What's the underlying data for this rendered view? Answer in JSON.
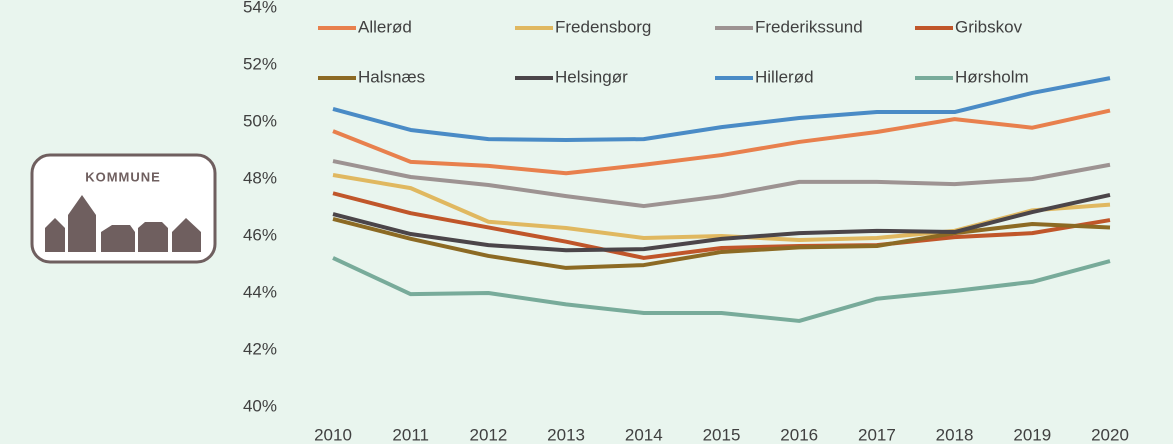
{
  "logo_text": "KOMMUNE",
  "chart_data": {
    "type": "line",
    "categories": [
      "2010",
      "2011",
      "2012",
      "2013",
      "2014",
      "2015",
      "2016",
      "2017",
      "2018",
      "2019",
      "2020"
    ],
    "series": [
      {
        "name": "Allerød",
        "color": "#e8804d",
        "values": [
          49.68,
          48.6,
          48.46,
          48.2,
          48.5,
          48.84,
          49.3,
          49.65,
          50.1,
          49.8,
          50.4
        ]
      },
      {
        "name": "Fredensborg",
        "color": "#e0b860",
        "values": [
          48.14,
          47.68,
          46.5,
          46.28,
          45.93,
          46.0,
          45.86,
          45.93,
          46.18,
          46.9,
          47.1
        ]
      },
      {
        "name": "Frederikssund",
        "color": "#9d9392",
        "values": [
          48.63,
          48.07,
          47.79,
          47.4,
          47.05,
          47.4,
          47.9,
          47.9,
          47.82,
          48.0,
          48.5
        ]
      },
      {
        "name": "Gribskov",
        "color": "#c0562a",
        "values": [
          47.5,
          46.8,
          46.3,
          45.8,
          45.23,
          45.58,
          45.65,
          45.68,
          45.96,
          46.1,
          46.56
        ]
      },
      {
        "name": "Halsnæs",
        "color": "#8c6a24",
        "values": [
          46.6,
          45.9,
          45.3,
          44.88,
          44.98,
          45.44,
          45.6,
          45.65,
          46.1,
          46.42,
          46.3
        ]
      },
      {
        "name": "Helsingør",
        "color": "#4b4549",
        "values": [
          46.77,
          46.07,
          45.68,
          45.5,
          45.54,
          45.9,
          46.1,
          46.18,
          46.14,
          46.84,
          47.44
        ]
      },
      {
        "name": "Hillerød",
        "color": "#4a8bc6",
        "values": [
          50.46,
          49.72,
          49.4,
          49.37,
          49.4,
          49.82,
          50.14,
          50.35,
          50.35,
          51.02,
          51.54
        ]
      },
      {
        "name": "Hørsholm",
        "color": "#78ab9a",
        "values": [
          45.23,
          43.96,
          44.0,
          43.6,
          43.3,
          43.3,
          43.02,
          43.8,
          44.07,
          44.39,
          45.12
        ]
      }
    ],
    "ylim": [
      40,
      54
    ],
    "yticks": [
      {
        "value": 40,
        "label": "40%"
      },
      {
        "value": 42,
        "label": "42%"
      },
      {
        "value": 44,
        "label": "44%"
      },
      {
        "value": 46,
        "label": "46%"
      },
      {
        "value": 48,
        "label": "48%"
      },
      {
        "value": 50,
        "label": "50%"
      },
      {
        "value": 52,
        "label": "52%"
      },
      {
        "value": 54,
        "label": "54%"
      }
    ],
    "grid": false,
    "legend": "top"
  }
}
